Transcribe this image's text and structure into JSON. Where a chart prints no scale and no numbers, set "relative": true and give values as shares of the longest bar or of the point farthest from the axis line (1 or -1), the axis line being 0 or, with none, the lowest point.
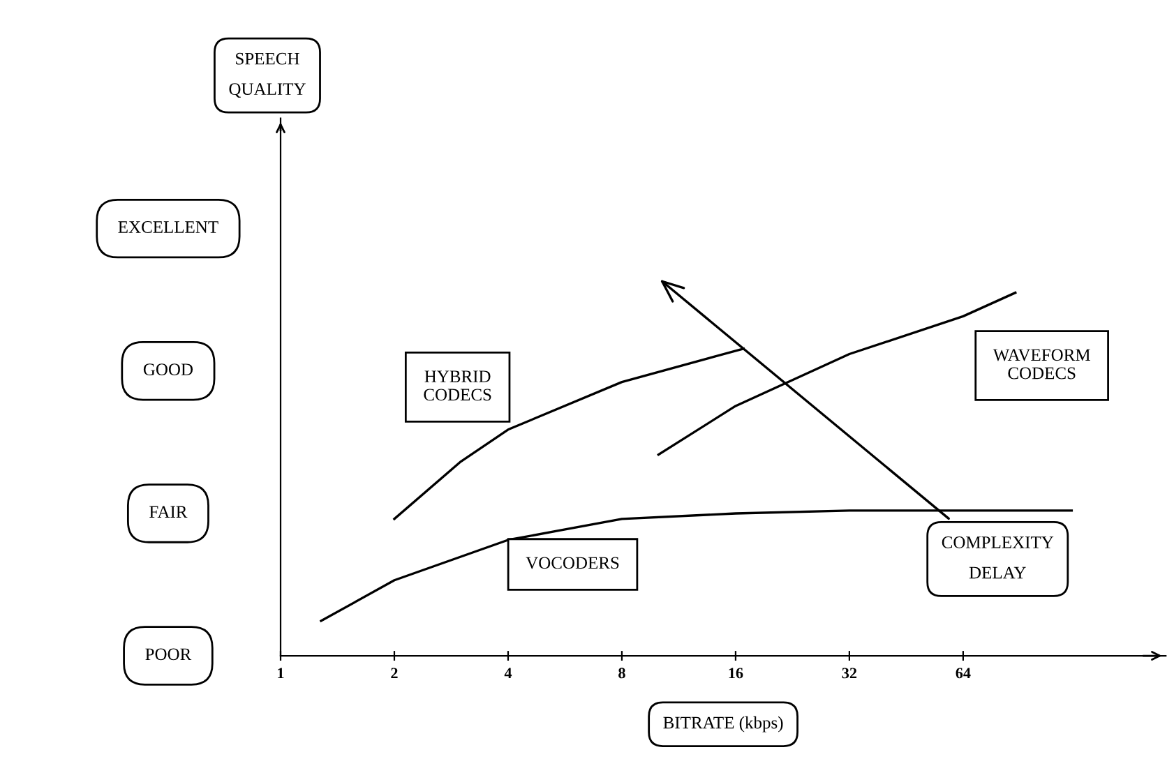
{
  "chart_data": {
    "type": "line",
    "xlabel": "BITRATE (kbps)",
    "log": "x",
    "xlim": [
      1,
      220
    ],
    "xticks": [
      1,
      2,
      4,
      8,
      16,
      32,
      64
    ],
    "relative": true,
    "grid": false,
    "legend": false,
    "marker": "none",
    "line_style": "solid",
    "series": [
      {
        "name": "VOCODERS",
        "color": "#000000",
        "x": [
          1.28,
          2,
          4,
          8,
          16,
          32,
          64,
          124
        ],
        "values": [
          0.096,
          0.208,
          0.319,
          0.377,
          0.392,
          0.4,
          0.4,
          0.4
        ]
      },
      {
        "name": "HYBRID CODECS",
        "color": "#000000",
        "x": [
          2,
          3,
          4,
          8,
          16.8
        ],
        "values": [
          0.377,
          0.535,
          0.623,
          0.754,
          0.846
        ]
      },
      {
        "name": "WAVEFORM CODECS",
        "color": "#000000",
        "x": [
          10,
          16,
          32,
          64,
          88
        ],
        "values": [
          0.554,
          0.688,
          0.831,
          0.935,
          1
        ]
      }
    ],
    "annotations": [
      "SPEECH QUALITY",
      "POOR",
      "FAIR",
      "GOOD",
      "EXCELLENT",
      "COMPLEXITY DELAY"
    ]
  }
}
